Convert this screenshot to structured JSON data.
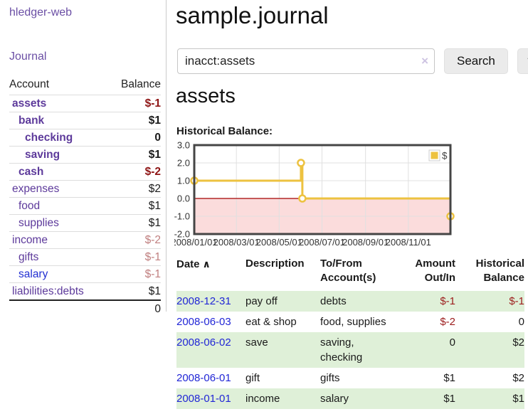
{
  "colors": {
    "link_purple": "#5d3a9b",
    "link_blue": "#2230d2",
    "negative_strong": "#8e1515",
    "negative_muted": "#c07f7f",
    "row_stripe_green": "#dff0d8",
    "button_gray": "#ebebeb"
  },
  "app": {
    "brand": "hledger-web"
  },
  "sidebar": {
    "nav": {
      "journal": "Journal"
    },
    "accounts": {
      "headers": [
        "Account",
        "Balance"
      ],
      "rows": [
        {
          "name": "assets",
          "balance": "$-1",
          "indent": 0,
          "bold": true
        },
        {
          "name": "bank",
          "balance": "$1",
          "indent": 1,
          "bold": true
        },
        {
          "name": "checking",
          "balance": "0",
          "indent": 2,
          "bold": true
        },
        {
          "name": "saving",
          "balance": "$1",
          "indent": 2,
          "bold": true
        },
        {
          "name": "cash",
          "balance": "$-2",
          "indent": 1,
          "bold": true
        },
        {
          "name": "expenses",
          "balance": "$2",
          "indent": 0,
          "bold": false
        },
        {
          "name": "food",
          "balance": "$1",
          "indent": 1,
          "bold": false
        },
        {
          "name": "supplies",
          "balance": "$1",
          "indent": 1,
          "bold": false
        },
        {
          "name": "income",
          "balance": "$-2",
          "indent": 0,
          "bold": false
        },
        {
          "name": "gifts",
          "balance": "$-1",
          "indent": 1,
          "bold": false
        },
        {
          "name": "salary",
          "balance": "$-1",
          "indent": 1,
          "bold": false,
          "unvisited": true
        },
        {
          "name": "liabilities:debts",
          "balance": "$1",
          "indent": 0,
          "bold": false
        }
      ],
      "total": "0"
    }
  },
  "main": {
    "title": "sample.journal",
    "search": {
      "value": "inacct:assets",
      "clear_icon": "×",
      "search_button": "Search",
      "help_button": "?"
    },
    "account_heading": "assets",
    "section_label": "Historical Balance:"
  },
  "chart_data": {
    "type": "line",
    "step": true,
    "title": "Historical Balance",
    "series": [
      {
        "name": "$",
        "points": [
          [
            "2008-01-01",
            1.0
          ],
          [
            "2008-06-01",
            2.0
          ],
          [
            "2008-06-02",
            2.0
          ],
          [
            "2008-06-03",
            0.0
          ],
          [
            "2008-12-31",
            -1.0
          ]
        ]
      }
    ],
    "xlim": [
      "2008-01-01",
      "2008-12-31"
    ],
    "ylim": [
      -2.0,
      3.0
    ],
    "yticks": [
      {
        "value": 3,
        "label": "3.0"
      },
      {
        "value": 2,
        "label": "2.0"
      },
      {
        "value": 1,
        "label": "1.0"
      },
      {
        "value": 0,
        "label": "0.0"
      },
      {
        "value": -1,
        "label": "-1.0"
      },
      {
        "value": -2,
        "label": "-2.0"
      }
    ],
    "xticks": [
      {
        "date": "2008-01-01",
        "label": "2008/01/01"
      },
      {
        "date": "2008-03-01",
        "label": "2008/03/01"
      },
      {
        "date": "2008-05-01",
        "label": "2008/05/01"
      },
      {
        "date": "2008-07-01",
        "label": "2008/07/01"
      },
      {
        "date": "2008-09-01",
        "label": "2008/09/01"
      },
      {
        "date": "2008-11-01",
        "label": "2008/11/01"
      }
    ],
    "legend": {
      "label": "$",
      "position": "top-right"
    },
    "grid": true,
    "colors": {
      "series": "#edc240",
      "negative_region": "#fbdcdc",
      "zero_line": "#a40000",
      "border": "#454545",
      "gridline": "#e0e0e0"
    }
  },
  "register": {
    "headers": {
      "date": "Date",
      "description": "Description",
      "accounts": "To/From Account(s)",
      "amount": "Amount Out/In",
      "balance": "Historical Balance"
    },
    "sort_indicator": "∧",
    "rows": [
      {
        "date": "2008-12-31",
        "description": "pay off",
        "accounts": "debts",
        "amount": "$-1",
        "balance": "$-1"
      },
      {
        "date": "2008-06-03",
        "description": "eat & shop",
        "accounts": "food, supplies",
        "amount": "$-2",
        "balance": "0"
      },
      {
        "date": "2008-06-02",
        "description": "save",
        "accounts": "saving, checking",
        "amount": "0",
        "balance": "$2"
      },
      {
        "date": "2008-06-01",
        "description": "gift",
        "accounts": "gifts",
        "amount": "$1",
        "balance": "$2"
      },
      {
        "date": "2008-01-01",
        "description": "income",
        "accounts": "salary",
        "amount": "$1",
        "balance": "$1"
      }
    ]
  }
}
